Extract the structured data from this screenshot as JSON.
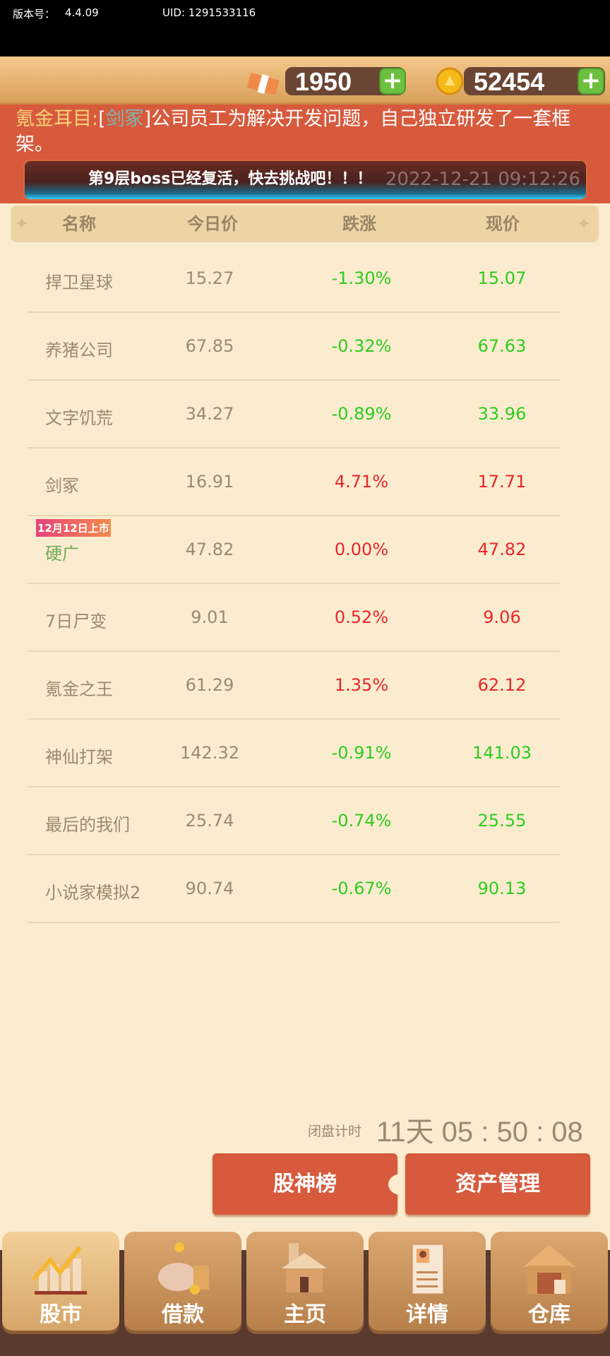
{
  "status": {
    "version_label": "版本号：",
    "version": "4.4.09",
    "uid": "UID: 1291533116"
  },
  "resources": {
    "cash": "1950",
    "coins": "52454",
    "cash_icon": "cash-bundle-icon",
    "coin_icon": "gold-coin-icon"
  },
  "ticker": {
    "source": "氪金耳目:",
    "bracket_open": "[",
    "company": "剑冢",
    "bracket_close": "]",
    "message": "公司员工为解决开发问题，自己独立研发了一套框架。"
  },
  "banner": {
    "text": "第9层boss已经复活，快去挑战吧！！！",
    "date": "2022-12-21 09:12:26"
  },
  "table": {
    "headers": [
      "名称",
      "今日价",
      "跌涨",
      "现价"
    ],
    "rows": [
      {
        "name": "捍卫星球",
        "today": "15.27",
        "change": "-1.30%",
        "current": "15.07",
        "trend": "down"
      },
      {
        "name": "养猪公司",
        "today": "67.85",
        "change": "-0.32%",
        "current": "67.63",
        "trend": "down"
      },
      {
        "name": "文字饥荒",
        "today": "34.27",
        "change": "-0.89%",
        "current": "33.96",
        "trend": "down"
      },
      {
        "name": "剑冢",
        "today": "16.91",
        "change": "4.71%",
        "current": "17.71",
        "trend": "up"
      },
      {
        "name": "硬广",
        "today": "47.82",
        "change": "0.00%",
        "current": "47.82",
        "trend": "up",
        "tag": "12月12日上市",
        "new": true
      },
      {
        "name": "7日尸变",
        "today": "9.01",
        "change": "0.52%",
        "current": "9.06",
        "trend": "up"
      },
      {
        "name": "氪金之王",
        "today": "61.29",
        "change": "1.35%",
        "current": "62.12",
        "trend": "up"
      },
      {
        "name": "神仙打架",
        "today": "142.32",
        "change": "-0.91%",
        "current": "141.03",
        "trend": "down"
      },
      {
        "name": "最后的我们",
        "today": "25.74",
        "change": "-0.74%",
        "current": "25.55",
        "trend": "down"
      },
      {
        "name": "小说家模拟2",
        "today": "90.74",
        "change": "-0.67%",
        "current": "90.13",
        "trend": "down"
      }
    ]
  },
  "countdown": {
    "label": "闭盘计时",
    "value": "11天 05 : 50 : 08"
  },
  "buttons": {
    "ranking": "股神榜",
    "assets": "资产管理"
  },
  "nav": [
    {
      "label": "股市",
      "icon": "stock-chart-icon",
      "active": true
    },
    {
      "label": "借款",
      "icon": "piggy-bank-icon"
    },
    {
      "label": "主页",
      "icon": "house-icon"
    },
    {
      "label": "详情",
      "icon": "profile-document-icon"
    },
    {
      "label": "仓库",
      "icon": "warehouse-icon"
    }
  ],
  "colors": {
    "up": "#e8262a",
    "down": "#2ecb1f",
    "new_name": "#6fab59",
    "accent": "#d75a3c"
  }
}
